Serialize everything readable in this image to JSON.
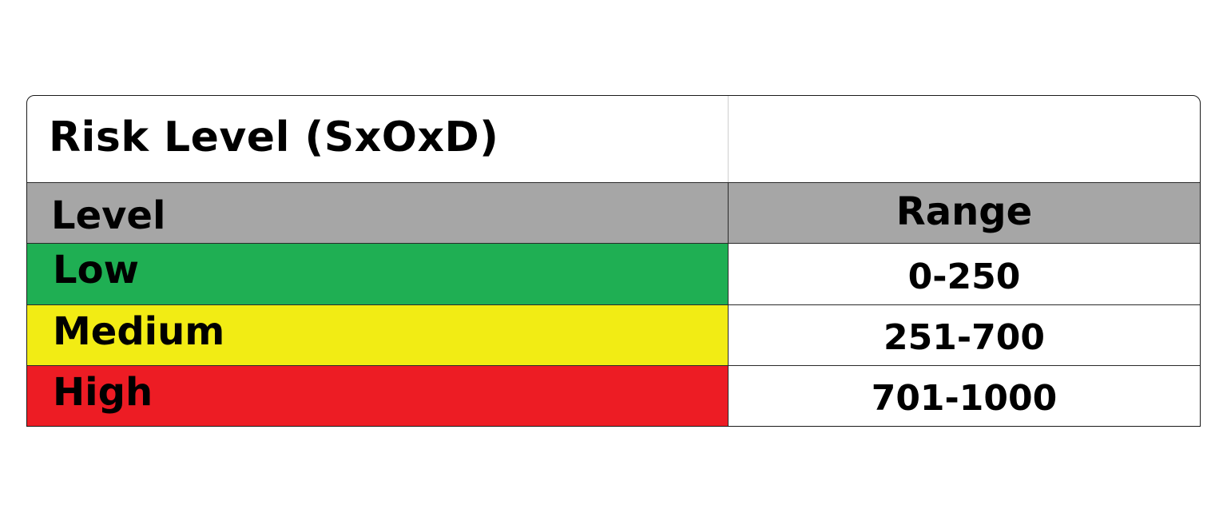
{
  "table": {
    "title": "Risk Level (SxOxD)",
    "headers": {
      "level": "Level",
      "range": "Range"
    },
    "rows": [
      {
        "level": "Low",
        "range": "0-250",
        "color": "#1faf53"
      },
      {
        "level": "Medium",
        "range": "251-700",
        "color": "#f2ec14"
      },
      {
        "level": "High",
        "range": "701-1000",
        "color": "#ed1c24"
      }
    ],
    "header_color": "#a6a6a6"
  }
}
